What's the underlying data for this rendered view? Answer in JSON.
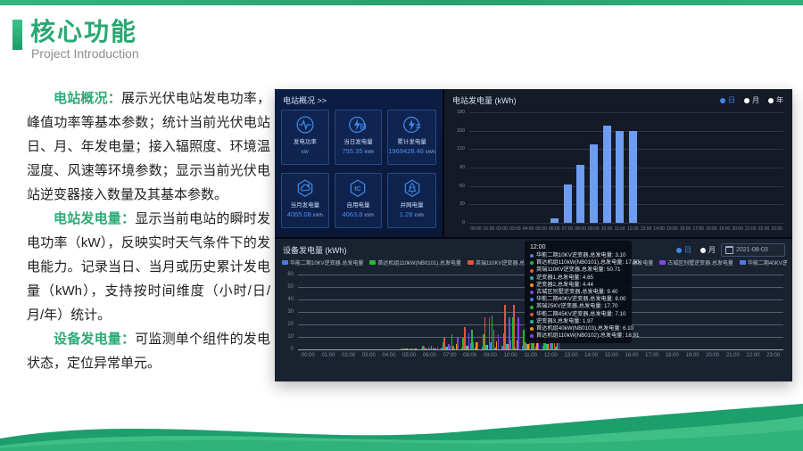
{
  "slide": {
    "title": "核心功能",
    "subtitle": "Project Introduction"
  },
  "intro": {
    "paragraphs": [
      {
        "lead": "电站概况：",
        "body": "展示光伏电站发电功率，峰值功率等基本参数；统计当前光伏电站日、月、年发电量；接入辐照度、环境温湿度、风速等环境参数；显示当前光伏电站逆变器接入数量及其基本参数。"
      },
      {
        "lead": "电站发电量：",
        "body": "显示当前电站的瞬时发电功率（kW），反映实时天气条件下的发电能力。记录当日、当月或历史累计发电量（kWh），支持按时间维度（小时/日/月/年）统计。"
      },
      {
        "lead": "设备发电量：",
        "body": "可监测单个组件的发电状态，定位异常单元。"
      }
    ]
  },
  "dashboard": {
    "overview": {
      "title": "电站概况 >>",
      "cards": [
        {
          "icon": "power-curve",
          "label": "发电功率",
          "value": "",
          "unit": "kW"
        },
        {
          "icon": "bolt-day",
          "label": "当日发电量",
          "value": "755.35",
          "unit": "kWh"
        },
        {
          "icon": "bolt-total",
          "label": "累计发电量",
          "value": "1969428.46",
          "unit": "kWh"
        },
        {
          "icon": "weather-cloud",
          "label": "当月发电量",
          "value": "4065.08",
          "unit": "kWh"
        },
        {
          "icon": "ic-chip",
          "label": "自用电量",
          "value": "4063.8",
          "unit": "kWh"
        },
        {
          "icon": "grid-tree",
          "label": "并网电量",
          "value": "1.28",
          "unit": "kWh"
        }
      ]
    },
    "station": {
      "title": "电站发电量 (kWh)",
      "toggles": [
        {
          "label": "日",
          "active": true
        },
        {
          "label": "月",
          "active": false
        },
        {
          "label": "年",
          "active": false
        }
      ]
    },
    "device": {
      "title": "设备发电量 (kWh)",
      "toggles": [
        {
          "label": "日",
          "active": true
        },
        {
          "label": "月",
          "active": false
        }
      ],
      "date": "2021-08-03",
      "legend_nav_prev": "◀",
      "legend_nav_next": "▶",
      "tooltip": {
        "time": "12:00",
        "rows": [
          {
            "color": "#4d7bdf",
            "text": "华能二期10KV逆变器,总发电量: 3.10"
          },
          {
            "color": "#25b836",
            "text": "首达机组110kW(NB0101),总发电量: 17.50"
          },
          {
            "color": "#e0563c",
            "text": "英瑞110KV逆变器,总发电量: 50.71"
          },
          {
            "color": "#29b7a3",
            "text": "逆变器1,总发电量: 4.65"
          },
          {
            "color": "#f3960f",
            "text": "逆变器2,总发电量: 4.44"
          },
          {
            "color": "#8047e5",
            "text": "古城区别墅逆变器,总发电量: 9.40"
          },
          {
            "color": "#4d7bdf",
            "text": "华能二期40KV逆变器,总发电量: 8.00"
          },
          {
            "color": "#25b836",
            "text": "英瑞25KV逆变器,总发电量: 17.70"
          },
          {
            "color": "#e0563c",
            "text": "华能二期45KV逆变器,总发电量: 7.10"
          },
          {
            "color": "#29b7a3",
            "text": "逆变器3,总发电量: 1.97"
          },
          {
            "color": "#f3960f",
            "text": "首达机组40kW(NB0103),总发电量: 6.10"
          },
          {
            "color": "#8047e5",
            "text": "首达机组110kW(NB0102),总发电量: 18.91"
          }
        ]
      }
    }
  },
  "chart_data": [
    {
      "type": "bar",
      "title": "电站发电量 (kWh)",
      "categories": [
        "00:00",
        "01:00",
        "02:00",
        "03:00",
        "04:00",
        "05:00",
        "06:00",
        "07:00",
        "08:00",
        "09:00",
        "10:00",
        "11:00",
        "12:00",
        "13:00",
        "14:00",
        "15:00",
        "16:00",
        "17:00",
        "18:00",
        "19:00",
        "20:00",
        "21:00",
        "22:00",
        "23:00"
      ],
      "values": [
        0,
        0,
        0,
        0,
        0,
        0,
        8,
        63,
        95,
        128,
        158,
        150,
        150,
        0,
        0,
        0,
        0,
        0,
        0,
        0,
        0,
        0,
        0,
        0
      ],
      "ylim": [
        0,
        180
      ],
      "yticks": [
        0,
        30,
        60,
        90,
        120,
        150,
        180
      ],
      "bar_color": "#6d9df0",
      "grid": true,
      "legend_position": "none"
    },
    {
      "type": "bar",
      "title": "设备发电量 (kWh)",
      "categories": [
        "00:00",
        "01:00",
        "02:00",
        "03:00",
        "04:00",
        "05:00",
        "06:00",
        "07:00",
        "08:00",
        "09:00",
        "10:00",
        "11:00",
        "12:00",
        "13:00",
        "14:00",
        "15:00",
        "16:00",
        "17:00",
        "18:00",
        "19:00",
        "20:00",
        "21:00",
        "22:00",
        "23:00"
      ],
      "ylim": [
        0,
        60
      ],
      "yticks": [
        0,
        10,
        20,
        30,
        40,
        50,
        60
      ],
      "grid": true,
      "legend_position": "top",
      "highlight_hour_index": 12,
      "series": [
        {
          "name": "华能二期10KV逆变器.总发电量",
          "color": "#4d7bdf",
          "values": [
            0,
            0,
            0,
            0,
            0,
            0.3,
            0.8,
            1.2,
            1.8,
            2.2,
            2.6,
            3,
            3.1,
            0,
            0,
            0,
            0,
            0,
            0,
            0,
            0,
            0,
            0,
            0
          ]
        },
        {
          "name": "首达机组110kW(NB0101).总发电量",
          "color": "#25b836",
          "values": [
            0,
            0,
            0,
            0,
            0,
            0.5,
            3,
            6,
            9.5,
            12,
            13,
            16,
            17.5,
            0,
            0,
            0,
            0,
            0,
            0,
            0,
            0,
            0,
            0,
            0
          ]
        },
        {
          "name": "英瑞110KV逆变器.总发电量",
          "color": "#e0563c",
          "values": [
            0,
            0,
            0,
            0,
            0,
            1,
            2.5,
            9,
            18,
            26,
            36,
            20,
            50.7,
            0,
            0,
            0,
            0,
            0,
            0,
            0,
            0,
            0,
            0,
            0
          ]
        },
        {
          "name": "逆变器1.总发电量",
          "color": "#29b7a3",
          "values": [
            0,
            0,
            0,
            0,
            0,
            0.5,
            1,
            2,
            3,
            3.5,
            4,
            4.5,
            4.65,
            0,
            0,
            0,
            0,
            0,
            0,
            0,
            0,
            0,
            0,
            0
          ]
        },
        {
          "name": "逆变器2.总发电量",
          "color": "#f3960f",
          "values": [
            0,
            0,
            0,
            0,
            0,
            0.4,
            1,
            2,
            3,
            3.4,
            4,
            4.2,
            4.44,
            0,
            0,
            0,
            0,
            0,
            0,
            0,
            0,
            0,
            0,
            0
          ]
        },
        {
          "name": "古城区别墅逆变器.总发电量",
          "color": "#8047e5",
          "values": [
            0,
            0,
            0,
            0,
            0,
            0.5,
            2,
            4,
            13,
            26,
            26,
            35,
            9.4,
            0,
            0,
            0,
            0,
            0,
            0,
            0,
            0,
            0,
            0,
            0
          ]
        },
        {
          "name": "华能二期40KV逆变器.总发电量",
          "color": "#4d7bdf",
          "values": [
            0,
            0,
            0,
            0,
            0,
            0.3,
            1,
            3,
            5,
            6,
            7,
            7.5,
            8,
            0,
            0,
            0,
            0,
            0,
            0,
            0,
            0,
            0,
            0,
            0
          ]
        },
        {
          "name": "英瑞25KV逆变器.总发电量",
          "color": "#25b836",
          "values": [
            0,
            0,
            0,
            0,
            0,
            1,
            3,
            12,
            16,
            27,
            26,
            37,
            17.7,
            0,
            0,
            0,
            0,
            0,
            0,
            0,
            0,
            0,
            0,
            0
          ]
        },
        {
          "name": "华能二期45KV逆变器.总发电量",
          "color": "#e0563c",
          "values": [
            0,
            0,
            0,
            0,
            0,
            0.5,
            1.5,
            3,
            6,
            16,
            36,
            18,
            7.1,
            0,
            0,
            0,
            0,
            0,
            0,
            0,
            0,
            0,
            0,
            0
          ]
        },
        {
          "name": "逆变器3.总发电量",
          "color": "#29b7a3",
          "values": [
            0,
            0,
            0,
            0,
            0,
            0.2,
            0.5,
            1,
            1.5,
            1.7,
            1.8,
            1.9,
            1.97,
            0,
            0,
            0,
            0,
            0,
            0,
            0,
            0,
            0,
            0,
            0
          ]
        },
        {
          "name": "首达机组40kW(NB0103).总发电量",
          "color": "#f3960f",
          "values": [
            0,
            0,
            0,
            0,
            0,
            0.3,
            1,
            4,
            6,
            6.5,
            7,
            13,
            6.1,
            0,
            0,
            0,
            0,
            0,
            0,
            0,
            0,
            0,
            0,
            0
          ]
        },
        {
          "name": "首达机组110kW(NB0102).总发电量",
          "color": "#8047e5",
          "values": [
            0,
            0,
            0,
            0,
            0,
            0.5,
            2,
            10,
            6,
            12,
            26,
            34,
            18.9,
            0,
            0,
            0,
            0,
            0,
            0,
            0,
            0,
            0,
            0,
            0
          ]
        }
      ]
    }
  ]
}
